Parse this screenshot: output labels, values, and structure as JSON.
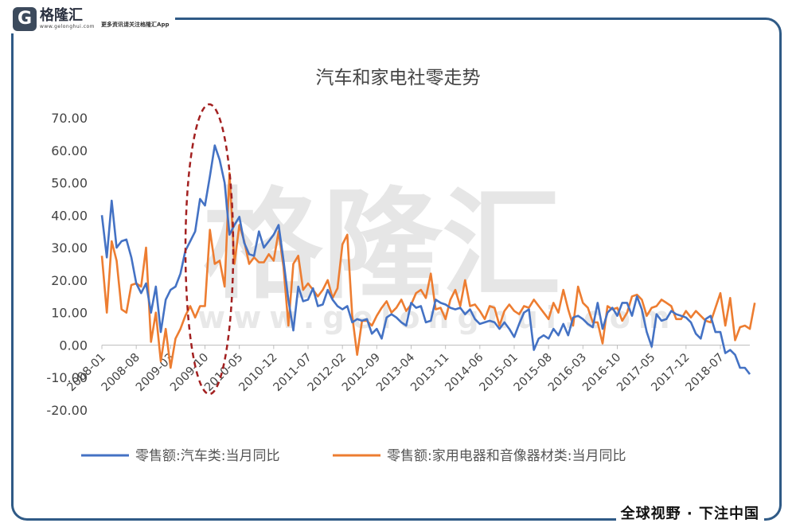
{
  "brand": {
    "logo_letter": "G",
    "name": "格隆汇",
    "url": "www.gelonghui.com",
    "tagline": "更多资讯请关注格隆汇App",
    "watermark": "格隆汇",
    "watermark_url": "www.gelonghui.com",
    "footer": "全球视野 · 下注中国",
    "frame_color": "#2f5a86"
  },
  "chart_data": {
    "type": "line",
    "title": "汽车和家电社零走势",
    "xlabel": "",
    "ylabel": "",
    "ylim": [
      -20,
      70
    ],
    "yticks": [
      "70.00",
      "60.00",
      "50.00",
      "40.00",
      "30.00",
      "20.00",
      "10.00",
      "0.00",
      "-10.00",
      "-20.00"
    ],
    "x_tick_labels": [
      "2008-01",
      "2008-08",
      "2009-03",
      "2009-10",
      "2010-05",
      "2010-12",
      "2011-07",
      "2012-02",
      "2012-09",
      "2013-04",
      "2013-11",
      "2014-06",
      "2015-01",
      "2015-08",
      "2016-03",
      "2016-10",
      "2017-05",
      "2017-12",
      "2018-07"
    ],
    "start_month": "2008-01",
    "legend_position": "bottom",
    "grid": false,
    "annotation": "red dashed ellipse highlighting 2009-06 to 2010-06 peak",
    "series": [
      {
        "name": "零售额:汽车类:当月同比",
        "color": "#4472c4",
        "values": [
          40.0,
          27.0,
          44.5,
          30.0,
          32.0,
          32.5,
          27.0,
          19.0,
          16.0,
          19.0,
          10.0,
          18.0,
          4.0,
          14.0,
          17.0,
          18.0,
          22.0,
          29.0,
          32.0,
          35.0,
          45.0,
          43.0,
          52.0,
          61.5,
          57.0,
          50.0,
          34.0,
          37.0,
          39.5,
          31.5,
          28.0,
          27.5,
          35.0,
          30.0,
          32.0,
          34.0,
          37.0,
          26.0,
          14.0,
          4.5,
          18.0,
          13.5,
          14.0,
          17.5,
          12.0,
          12.5,
          17.0,
          14.0,
          12.0,
          11.0,
          12.0,
          7.0,
          8.0,
          7.5,
          8.0,
          3.5,
          5.0,
          2.0,
          8.5,
          9.5,
          8.5,
          7.0,
          6.0,
          13.0,
          11.5,
          12.0,
          7.0,
          7.5,
          14.0,
          13.0,
          12.5,
          11.5,
          11.0,
          11.5,
          9.5,
          11.0,
          8.0,
          6.5,
          7.0,
          7.5,
          7.0,
          5.0,
          7.0,
          5.0,
          2.5,
          6.5,
          10.0,
          11.0,
          -1.5,
          2.0,
          3.0,
          2.0,
          5.0,
          3.0,
          6.5,
          3.0,
          8.5,
          9.0,
          8.0,
          6.5,
          5.5,
          13.0,
          5.0,
          10.0,
          11.5,
          9.0,
          13.0,
          13.0,
          9.0,
          15.0,
          11.0,
          4.0,
          -0.5,
          9.5,
          7.5,
          8.0,
          10.5,
          9.5,
          9.0,
          8.5,
          7.0,
          3.5,
          2.0,
          8.0,
          9.0,
          4.0,
          4.0,
          -2.5,
          -1.5,
          -3.0,
          -7.0,
          -7.0,
          -9.0
        ]
      },
      {
        "name": "零售额:家用电器和音像器材类:当月同比",
        "color": "#ed7d31",
        "values": [
          27.5,
          10.0,
          32.0,
          26.0,
          11.0,
          10.0,
          18.5,
          19.0,
          18.0,
          30.0,
          1.0,
          10.0,
          -5.0,
          5.0,
          -7.0,
          2.0,
          5.0,
          9.0,
          12.0,
          8.5,
          12.0,
          12.0,
          35.5,
          25.0,
          26.0,
          18.0,
          53.0,
          25.0,
          37.0,
          32.0,
          25.0,
          27.0,
          25.5,
          25.5,
          28.0,
          26.0,
          35.0,
          24.0,
          6.0,
          25.0,
          27.5,
          17.0,
          19.0,
          17.0,
          15.0,
          17.0,
          20.0,
          14.5,
          17.5,
          31.0,
          34.0,
          9.0,
          -3.0,
          7.5,
          7.5,
          6.0,
          9.0,
          11.5,
          13.5,
          10.0,
          11.5,
          14.0,
          10.5,
          12.5,
          16.0,
          17.0,
          14.5,
          22.0,
          11.0,
          11.5,
          8.0,
          14.0,
          17.0,
          12.0,
          20.0,
          12.0,
          12.5,
          10.5,
          8.0,
          12.0,
          11.5,
          6.0,
          10.5,
          12.5,
          10.5,
          9.5,
          12.0,
          11.5,
          14.0,
          12.0,
          10.0,
          8.0,
          13.0,
          10.0,
          17.0,
          11.0,
          6.0,
          18.0,
          13.0,
          11.5,
          7.0,
          7.0,
          0.5,
          12.0,
          11.0,
          11.5,
          7.5,
          10.0,
          15.0,
          15.5,
          14.0,
          9.0,
          11.5,
          12.0,
          14.0,
          13.0,
          12.0,
          8.0,
          8.0,
          10.5,
          8.5,
          10.5,
          9.0,
          7.5,
          7.0,
          11.5,
          16.0,
          6.0,
          14.5,
          1.5,
          5.5,
          6.0,
          5.0,
          13.0
        ]
      }
    ]
  }
}
